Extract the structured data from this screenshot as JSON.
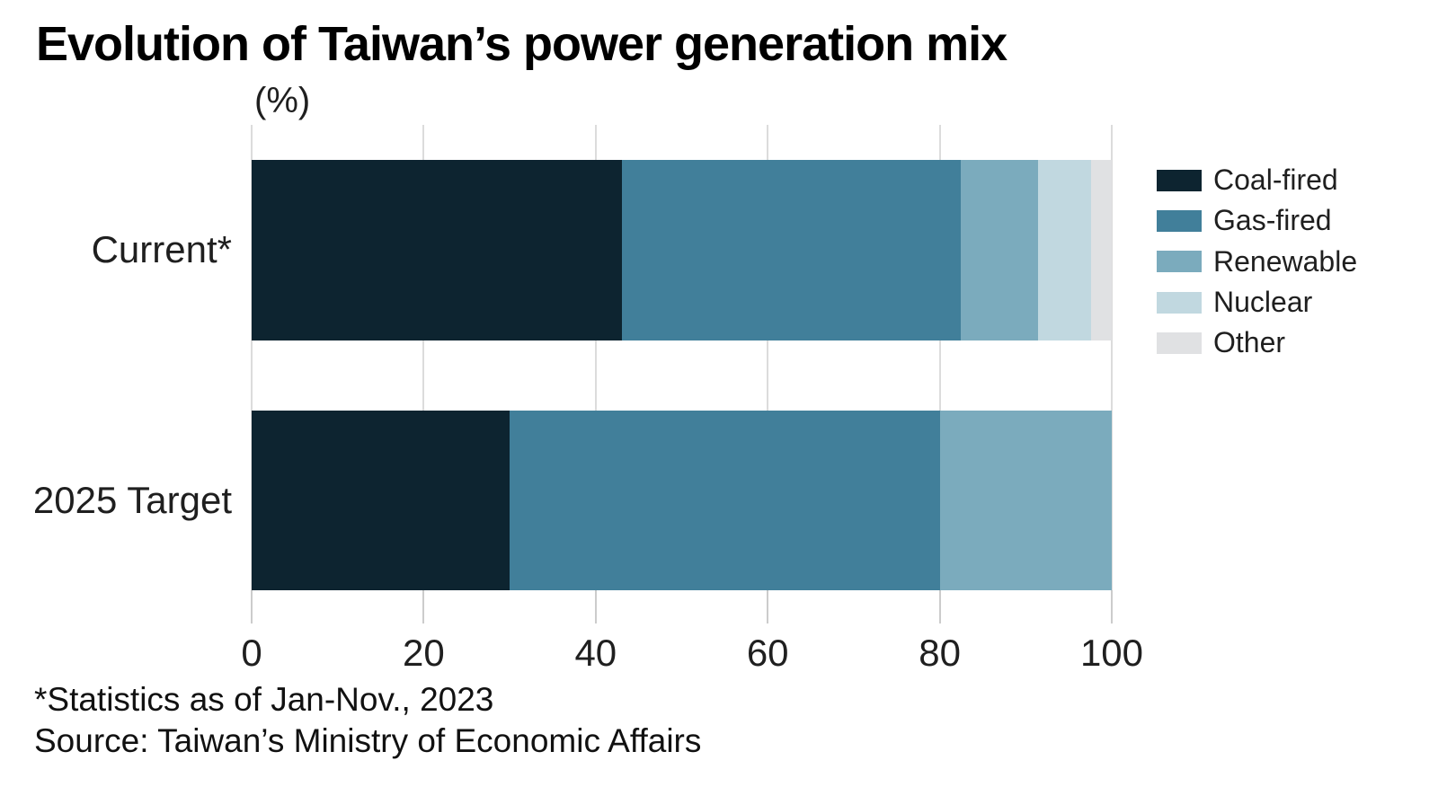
{
  "title": "Evolution of Taiwan’s power generation mix",
  "unit_label": "(%)",
  "footnote": "*Statistics as of Jan-Nov., 2023",
  "source": "Source: Taiwan’s Ministry of Economic Affairs",
  "colors": {
    "background": "#ffffff",
    "gridline": "#dcdcdc",
    "tick": "#cccccc",
    "text": "#1f1f1f",
    "title_text": "#000000"
  },
  "chart_data": {
    "type": "bar",
    "orientation": "horizontal",
    "stacked": true,
    "title": "Evolution of Taiwan's power generation mix",
    "xlabel": "(%)",
    "ylabel": "",
    "xlim": [
      0,
      100
    ],
    "xticks": [
      0,
      20,
      40,
      60,
      80,
      100
    ],
    "grid": true,
    "legend_position": "right",
    "categories": [
      "Current*",
      "2025 Target"
    ],
    "series": [
      {
        "name": "Coal-fired",
        "color": "#0d2430",
        "values": [
          43.0,
          30.0
        ]
      },
      {
        "name": "Gas-fired",
        "color": "#417f9a",
        "values": [
          39.4,
          50.0
        ]
      },
      {
        "name": "Renewable",
        "color": "#7babbd",
        "values": [
          9.0,
          20.0
        ]
      },
      {
        "name": "Nuclear",
        "color": "#c1d8e0",
        "values": [
          6.2,
          0.0
        ]
      },
      {
        "name": "Other",
        "color": "#e0e1e3",
        "values": [
          2.4,
          0.0
        ]
      }
    ],
    "annotations": [
      "*Statistics as of Jan-Nov., 2023",
      "Source: Taiwan's Ministry of Economic Affairs"
    ]
  }
}
